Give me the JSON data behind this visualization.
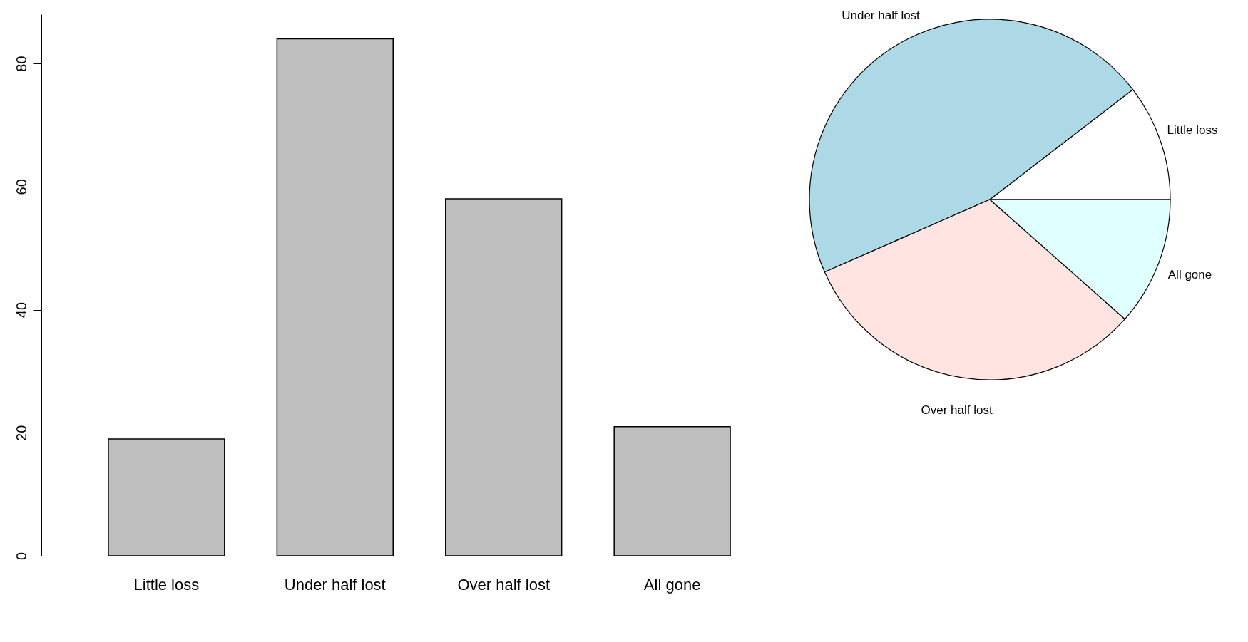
{
  "chart_data": [
    {
      "type": "bar",
      "categories": [
        "Little loss",
        "Under half lost",
        "Over half lost",
        "All gone"
      ],
      "values": [
        19,
        84,
        58,
        21
      ],
      "color": "#bebebe",
      "ylim": [
        0,
        88
      ],
      "yticks": [
        0,
        20,
        40,
        60,
        80
      ],
      "grid": false
    },
    {
      "type": "pie",
      "categories": [
        "Little loss",
        "Under half lost",
        "Over half lost",
        "All gone"
      ],
      "values": [
        10.44,
        46.15,
        31.87,
        11.54
      ],
      "colors": [
        "#ffffff",
        "#add8e6",
        "#ffe4e1",
        "#e0ffff"
      ]
    }
  ]
}
